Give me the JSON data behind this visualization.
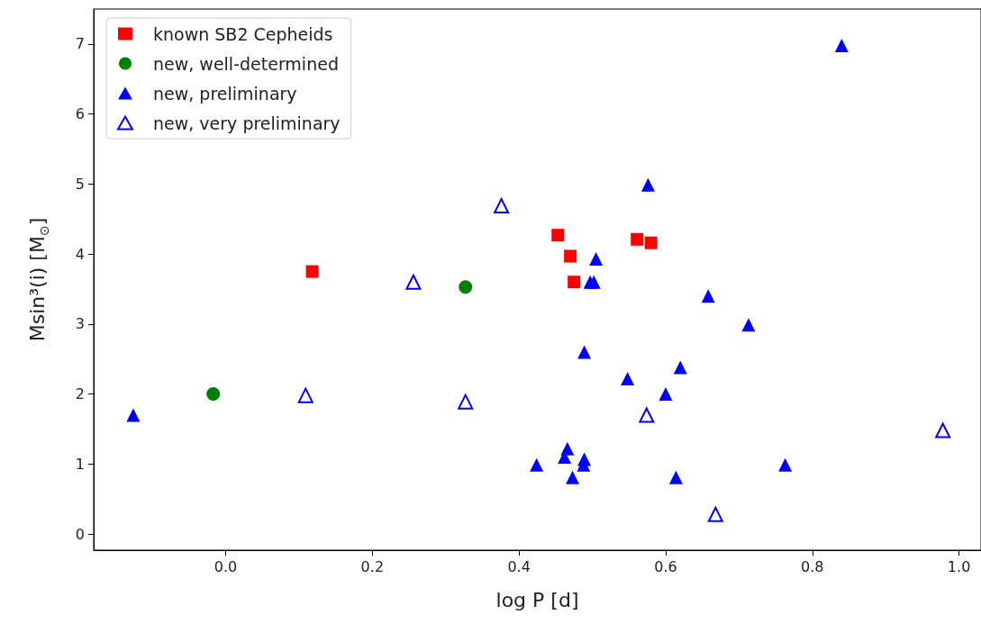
{
  "chart_data": {
    "type": "scatter",
    "xlabel": "log P [d]",
    "ylabel": "Msin³(i) [M$_{⊙}$]",
    "xlim": [
      -0.18,
      1.03
    ],
    "ylim": [
      -0.23,
      7.5
    ],
    "xticks": [
      {
        "value": 0,
        "label": "0.0"
      },
      {
        "value": 0.2,
        "label": "0.2"
      },
      {
        "value": 0.4,
        "label": "0.4"
      },
      {
        "value": 0.6,
        "label": "0.6"
      },
      {
        "value": 0.8,
        "label": "0.8"
      },
      {
        "value": 1,
        "label": "1.0"
      }
    ],
    "yticks": [
      0,
      1,
      2,
      3,
      4,
      5,
      6,
      7
    ],
    "grid": false,
    "legend": "top left",
    "series": [
      {
        "name": "known SB2 Cepheids",
        "color": "#ff0000",
        "marker": "square",
        "x": [
          0.118,
          0.453,
          0.47,
          0.475,
          0.561,
          0.58
        ],
        "values": [
          3.75,
          4.27,
          3.97,
          3.6,
          4.21,
          4.16
        ]
      },
      {
        "name": "new, well-determined",
        "color": "#008000",
        "marker": "circle",
        "x": [
          -0.017,
          0.327
        ],
        "values": [
          2.0,
          3.53
        ]
      },
      {
        "name": "new, preliminary",
        "color": "#0000ff",
        "marker": "triangle",
        "x": [
          -0.126,
          0.84,
          0.576,
          0.505,
          0.497,
          0.502,
          0.658,
          0.713,
          0.489,
          0.62,
          0.548,
          0.6,
          0.424,
          0.466,
          0.462,
          0.489,
          0.488,
          0.473,
          0.614,
          0.763
        ],
        "values": [
          1.7,
          6.98,
          4.99,
          3.93,
          3.6,
          3.6,
          3.4,
          2.99,
          2.6,
          2.38,
          2.22,
          2.0,
          0.99,
          1.22,
          1.1,
          1.07,
          0.99,
          0.81,
          0.81,
          0.99
        ]
      },
      {
        "name": "new, very preliminary",
        "color": "#0000ff",
        "marker": "triangle-open",
        "x": [
          0.376,
          0.256,
          0.109,
          0.327,
          0.574,
          0.668,
          0.978
        ],
        "values": [
          4.69,
          3.6,
          1.98,
          1.89,
          1.7,
          0.28,
          1.48
        ]
      }
    ]
  }
}
